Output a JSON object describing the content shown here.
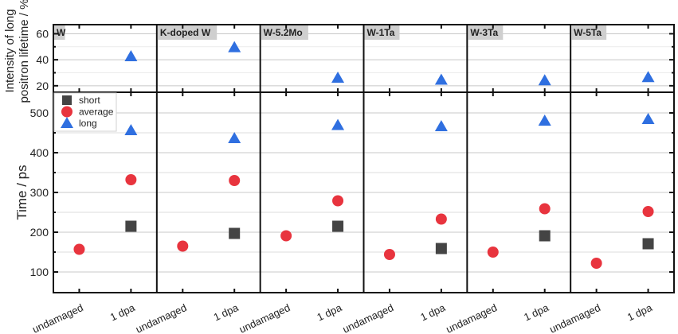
{
  "chart_data": {
    "type": "scatter",
    "panels": [
      "W",
      "K-doped W",
      "W-5.2Mo",
      "W-1Ta",
      "W-3Ta",
      "W-5Ta"
    ],
    "categories": [
      "undamaged",
      "1 dpa"
    ],
    "top": {
      "ylabel_line1": "Intensity of long",
      "ylabel_line2": "positron lifetime / %",
      "ylim": [
        15,
        67
      ],
      "ticks": [
        20,
        40,
        60
      ],
      "minor_ticks": [
        30,
        50
      ],
      "series": {
        "name": "long intensity",
        "category": "1 dpa",
        "values": [
          42.5,
          49.5,
          26,
          24.5,
          24,
          26.5
        ]
      }
    },
    "bottom": {
      "ylabel": "Time / ps",
      "ylim": [
        48,
        552
      ],
      "ticks": [
        100,
        200,
        300,
        400,
        500
      ],
      "minor_ticks": [
        150,
        250,
        350,
        450
      ],
      "series": [
        {
          "name": "short",
          "marker": "square",
          "color": "#444444",
          "points": [
            {
              "panel": "W",
              "category": "1 dpa",
              "value": 215
            },
            {
              "panel": "K-doped W",
              "category": "1 dpa",
              "value": 197
            },
            {
              "panel": "W-5.2Mo",
              "category": "1 dpa",
              "value": 215
            },
            {
              "panel": "W-1Ta",
              "category": "1 dpa",
              "value": 159
            },
            {
              "panel": "W-3Ta",
              "category": "1 dpa",
              "value": 191
            },
            {
              "panel": "W-5Ta",
              "category": "1 dpa",
              "value": 171
            }
          ]
        },
        {
          "name": "average",
          "marker": "circle",
          "color": "#e8343e",
          "points": [
            {
              "panel": "W",
              "category": "undamaged",
              "value": 157
            },
            {
              "panel": "W",
              "category": "1 dpa",
              "value": 332
            },
            {
              "panel": "K-doped W",
              "category": "undamaged",
              "value": 165
            },
            {
              "panel": "K-doped W",
              "category": "1 dpa",
              "value": 330
            },
            {
              "panel": "W-5.2Mo",
              "category": "undamaged",
              "value": 191
            },
            {
              "panel": "W-5.2Mo",
              "category": "1 dpa",
              "value": 279
            },
            {
              "panel": "W-1Ta",
              "category": "undamaged",
              "value": 144
            },
            {
              "panel": "W-1Ta",
              "category": "1 dpa",
              "value": 233
            },
            {
              "panel": "W-3Ta",
              "category": "undamaged",
              "value": 150
            },
            {
              "panel": "W-3Ta",
              "category": "1 dpa",
              "value": 259
            },
            {
              "panel": "W-5Ta",
              "category": "undamaged",
              "value": 122
            },
            {
              "panel": "W-5Ta",
              "category": "1 dpa",
              "value": 252
            }
          ]
        },
        {
          "name": "long",
          "marker": "triangle",
          "color": "#2f6fe0",
          "points": [
            {
              "panel": "W",
              "category": "1 dpa",
              "value": 456
            },
            {
              "panel": "K-doped W",
              "category": "1 dpa",
              "value": 436
            },
            {
              "panel": "W-5.2Mo",
              "category": "1 dpa",
              "value": 469
            },
            {
              "panel": "W-1Ta",
              "category": "1 dpa",
              "value": 466
            },
            {
              "panel": "W-3Ta",
              "category": "1 dpa",
              "value": 480
            },
            {
              "panel": "W-5Ta",
              "category": "1 dpa",
              "value": 484
            }
          ]
        }
      ]
    },
    "legend": {
      "placement": "top-left",
      "entries": [
        "short",
        "average",
        "long"
      ]
    },
    "grid": true
  }
}
